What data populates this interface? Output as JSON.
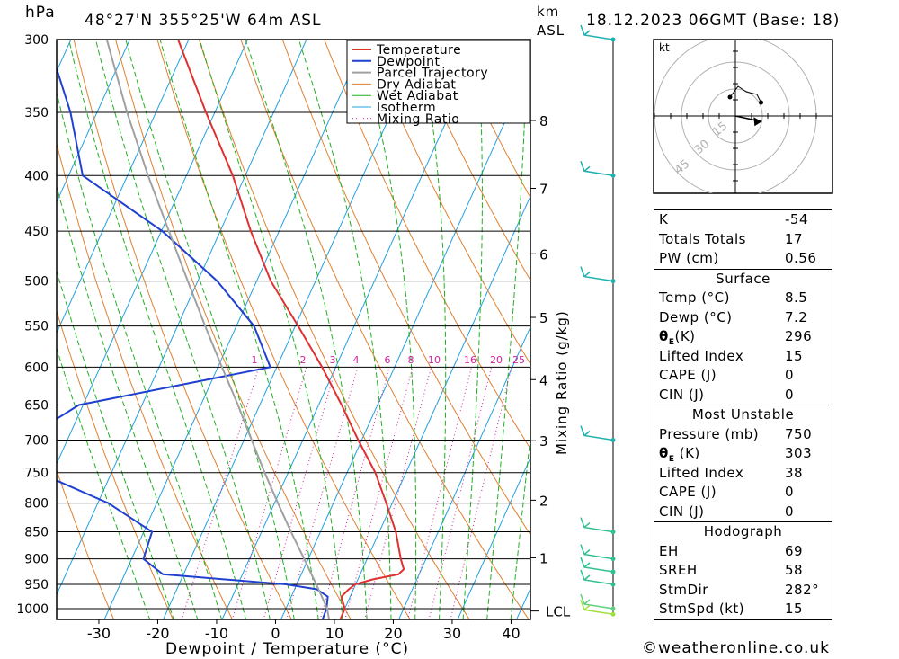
{
  "header": {
    "hpa_unit": "hPa",
    "km_unit": "km",
    "asl_unit": "ASL",
    "location": "48°27'N  355°25'W  64m  ASL",
    "datetime": "18.12.2023  06GMT  (Base: 18)"
  },
  "chart_data": {
    "type": "line",
    "title": "48°27'N  355°25'W  64m  ASL",
    "xlabel": "Dewpoint / Temperature (°C)",
    "ylabel": "hPa",
    "secondary_ylabel": "Mixing Ratio (g/kg)",
    "xlim": [
      -40,
      40
    ],
    "ylim": [
      1050,
      300
    ],
    "pressure_ticks": [
      300,
      350,
      400,
      450,
      500,
      550,
      600,
      650,
      700,
      750,
      800,
      850,
      900,
      950,
      1000
    ],
    "temp_ticks": [
      -30,
      -20,
      -10,
      0,
      10,
      20,
      30,
      40
    ],
    "km_ticks": [
      {
        "km": "1",
        "p": 898
      },
      {
        "km": "2",
        "p": 795
      },
      {
        "km": "3",
        "p": 701
      },
      {
        "km": "4",
        "p": 616
      },
      {
        "km": "5",
        "p": 540
      },
      {
        "km": "6",
        "p": 472
      },
      {
        "km": "7",
        "p": 411
      },
      {
        "km": "8",
        "p": 356
      }
    ],
    "lcl": {
      "label": "LCL",
      "p": 1005
    },
    "mixing_ratio_labels": [
      "1",
      "2",
      "3",
      "4",
      "6",
      "8",
      "10",
      "16",
      "20",
      "25"
    ],
    "mixing_ratio_values": [
      1,
      2,
      3,
      4,
      6,
      8,
      10,
      16,
      20,
      25
    ],
    "legend": [
      "Temperature",
      "Dewpoint",
      "Parcel Trajectory",
      "Dry Adiabat",
      "Wet Adiabat",
      "Isotherm",
      "Mixing Ratio"
    ],
    "series": [
      {
        "name": "Temperature",
        "color": "#e03030",
        "points": [
          [
            1030,
            10.1
          ],
          [
            1000,
            10.0
          ],
          [
            975,
            8.5
          ],
          [
            960,
            9.2
          ],
          [
            950,
            9.9
          ],
          [
            940,
            12.5
          ],
          [
            930,
            16.5
          ],
          [
            920,
            17.0
          ],
          [
            900,
            15.7
          ],
          [
            850,
            12.8
          ],
          [
            800,
            9.0
          ],
          [
            750,
            4.8
          ],
          [
            700,
            -0.6
          ],
          [
            650,
            -6.1
          ],
          [
            600,
            -12.3
          ],
          [
            550,
            -19.5
          ],
          [
            500,
            -27.6
          ],
          [
            450,
            -34.8
          ],
          [
            400,
            -42.1
          ],
          [
            350,
            -51.5
          ],
          [
            300,
            -61.8
          ]
        ]
      },
      {
        "name": "Dewpoint",
        "color": "#2040d0",
        "points": [
          [
            1030,
            7.1
          ],
          [
            1000,
            6.9
          ],
          [
            975,
            6.2
          ],
          [
            960,
            3.8
          ],
          [
            950,
            -1.8
          ],
          [
            930,
            -23.5
          ],
          [
            900,
            -28.0
          ],
          [
            850,
            -28.6
          ],
          [
            800,
            -38.2
          ],
          [
            750,
            -52.4
          ],
          [
            700,
            -57.6
          ],
          [
            650,
            -50.7
          ],
          [
            600,
            -21.1
          ],
          [
            550,
            -27.0
          ],
          [
            500,
            -36.7
          ],
          [
            450,
            -49.8
          ],
          [
            400,
            -67.6
          ],
          [
            350,
            -74.5
          ],
          [
            300,
            -84.0
          ]
        ]
      },
      {
        "name": "Parcel Trajectory",
        "color": "#a0a0a0",
        "points": [
          [
            1030,
            8.5
          ],
          [
            1000,
            7.0
          ],
          [
            975,
            5.2
          ],
          [
            950,
            3.3
          ],
          [
            900,
            -0.7
          ],
          [
            850,
            -5.0
          ],
          [
            800,
            -9.4
          ],
          [
            750,
            -14.0
          ],
          [
            700,
            -18.7
          ],
          [
            650,
            -23.7
          ],
          [
            600,
            -29.3
          ],
          [
            550,
            -35.3
          ],
          [
            500,
            -41.7
          ],
          [
            450,
            -48.7
          ],
          [
            400,
            -56.5
          ],
          [
            350,
            -64.9
          ],
          [
            300,
            -73.9
          ]
        ]
      }
    ],
    "wind_barbs": [
      {
        "p": 300,
        "color": "#20b0b0"
      },
      {
        "p": 400,
        "color": "#20b0b0"
      },
      {
        "p": 500,
        "color": "#20b0b0"
      },
      {
        "p": 700,
        "color": "#20b0b0"
      },
      {
        "p": 850,
        "color": "#30c090"
      },
      {
        "p": 900,
        "color": "#30c090"
      },
      {
        "p": 925,
        "color": "#30c090"
      },
      {
        "p": 950,
        "color": "#30c090"
      },
      {
        "p": 1000,
        "color": "#60d080"
      },
      {
        "p": 1012,
        "color": "#a0e040"
      }
    ],
    "hodograph": {
      "unit": "kt",
      "ring_labels": [
        "15",
        "30",
        "45"
      ],
      "points": [
        [
          -0.2,
          -0.7
        ],
        [
          0.1,
          -1.1
        ],
        [
          0.4,
          -0.9
        ],
        [
          0.8,
          -0.8
        ],
        [
          0.95,
          -0.5
        ]
      ],
      "storm_motion": {
        "dir_deg": 282,
        "speed_kt": 15
      }
    }
  },
  "indices": {
    "k_label": "K",
    "k_value": "-54",
    "tt_label": "Totals Totals",
    "tt_value": "17",
    "pw_label": "PW (cm)",
    "pw_value": "0.56"
  },
  "surface": {
    "title": "Surface",
    "temp_label": "Temp (°C)",
    "temp_value": "8.5",
    "dewp_label": "Dewp (°C)",
    "dewp_value": "7.2",
    "theta_label": "(K)",
    "theta_value": "296",
    "li_label": "Lifted Index",
    "li_value": "15",
    "cape_label": "CAPE (J)",
    "cape_value": "0",
    "cin_label": "CIN (J)",
    "cin_value": "0"
  },
  "most_unstable": {
    "title": "Most Unstable",
    "pressure_label": "Pressure (mb)",
    "pressure_value": "750",
    "theta_label": " (K)",
    "theta_value": "303",
    "li_label": "Lifted Index",
    "li_value": "38",
    "cape_label": "CAPE (J)",
    "cape_value": "0",
    "cin_label": "CIN (J)",
    "cin_value": "0"
  },
  "hodograph_table": {
    "title": "Hodograph",
    "eh_label": "EH",
    "eh_value": "69",
    "sreh_label": "SREH",
    "sreh_value": "58",
    "stmdir_label": "StmDir",
    "stmdir_value": "282°",
    "stmspd_label": "StmSpd (kt)",
    "stmspd_value": "15"
  },
  "footer": {
    "credit": "©weatheronline.co.uk"
  },
  "colors": {
    "temperature": "#e03030",
    "dewpoint": "#2040d0",
    "parcel": "#a0a0a0",
    "dry_adiabat": "#e08030",
    "wet_adiabat": "#20b020",
    "isotherm": "#20a0e0",
    "mixing_ratio": "#d020a0",
    "barb": "#20b0b0"
  }
}
